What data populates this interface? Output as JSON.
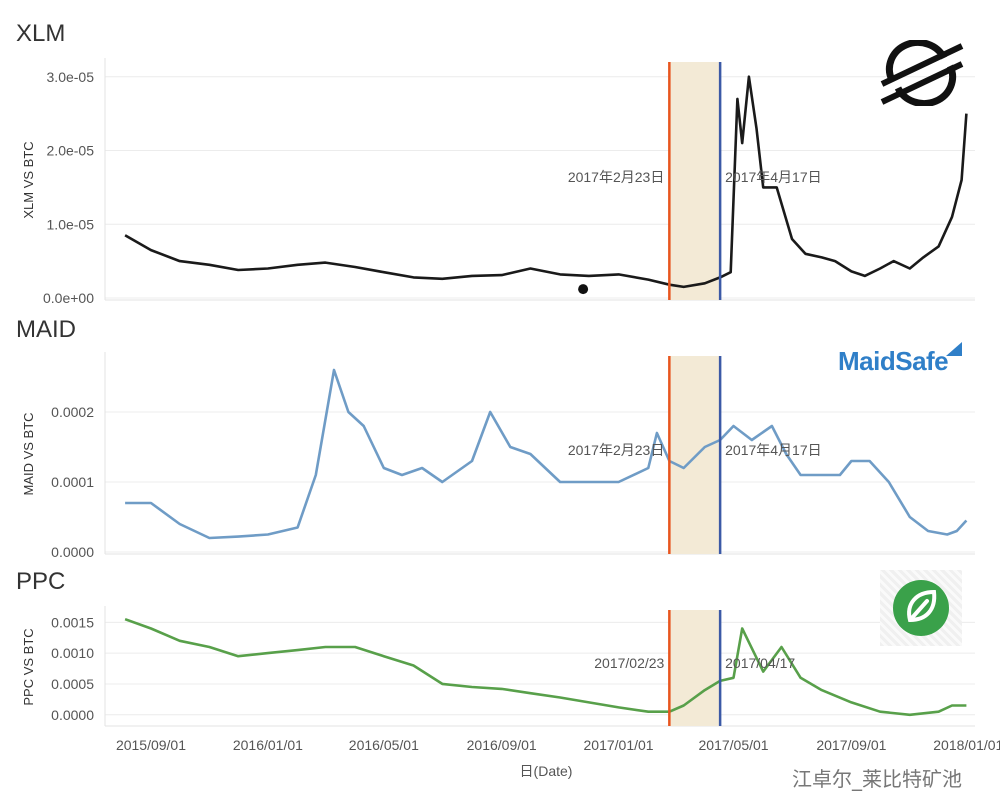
{
  "panels": [
    {
      "title": "XLM",
      "logo": "stellar-logo-icon"
    },
    {
      "title": "MAID",
      "logo": "maidsafe-logo-icon",
      "logo_text": "MaidSafe"
    },
    {
      "title": "PPC",
      "logo": "peercoin-leaf-icon"
    }
  ],
  "watermark": "江卓尔_莱比特矿池",
  "colors": {
    "xlm": "#1a1a1a",
    "maid": "#6f9cc6",
    "ppc": "#58a04a",
    "start_line": "#e8551e",
    "end_line": "#3b59a6",
    "shade": "#f3ead6",
    "grid": "#ececec"
  },
  "chart_data": [
    {
      "type": "line",
      "ylabel": "XLM VS BTC",
      "xlabel": "",
      "ylim": [
        0,
        3.2e-05
      ],
      "y_ticks": [
        "0.0e+00",
        "1.0e-05",
        "2.0e-05",
        "3.0e-05"
      ],
      "annotations": [
        "2017年2月23日",
        "2017年4月17日"
      ],
      "highlight_range": [
        "2017-02-23",
        "2017-04-17"
      ],
      "series": [
        {
          "x": [
            "2015-08-05",
            "2015-09-01",
            "2015-10-01",
            "2015-11-01",
            "2015-12-01",
            "2016-01-01",
            "2016-02-01",
            "2016-03-01",
            "2016-04-01",
            "2016-05-01",
            "2016-06-01",
            "2016-07-01",
            "2016-08-01",
            "2016-09-01",
            "2016-10-01",
            "2016-11-01",
            "2016-12-01",
            "2017-01-01",
            "2017-02-01",
            "2017-02-23",
            "2017-03-10",
            "2017-04-01",
            "2017-04-17",
            "2017-04-28",
            "2017-05-05",
            "2017-05-10",
            "2017-05-17",
            "2017-05-25",
            "2017-06-01",
            "2017-06-15",
            "2017-07-01",
            "2017-07-15",
            "2017-08-01",
            "2017-08-15",
            "2017-09-01",
            "2017-09-15",
            "2017-10-01",
            "2017-10-15",
            "2017-11-01",
            "2017-11-15",
            "2017-12-01",
            "2017-12-15",
            "2017-12-25",
            "2017-12-30"
          ],
          "y": [
            8.5e-06,
            6.5e-06,
            5e-06,
            4.5e-06,
            3.8e-06,
            4e-06,
            4.5e-06,
            4.8e-06,
            4.2e-06,
            3.5e-06,
            2.8e-06,
            2.6e-06,
            3e-06,
            3.1e-06,
            4e-06,
            3.2e-06,
            3e-06,
            3.2e-06,
            2.5e-06,
            1.8e-06,
            1.5e-06,
            2e-06,
            2.8e-06,
            3.5e-06,
            2.7e-05,
            2.1e-05,
            3e-05,
            2.3e-05,
            1.5e-05,
            1.5e-05,
            8e-06,
            6e-06,
            5.5e-06,
            5e-06,
            3.6e-06,
            3e-06,
            4e-06,
            5e-06,
            4e-06,
            5.5e-06,
            7e-06,
            1.1e-05,
            1.6e-05,
            2.5e-05
          ]
        }
      ],
      "points": [
        {
          "x": "2016-11-25",
          "y": 1.2e-06
        }
      ]
    },
    {
      "type": "line",
      "ylabel": "MAID VS BTC",
      "xlabel": "",
      "ylim": [
        0,
        0.00028
      ],
      "y_ticks": [
        "0.0000",
        "0.0001",
        "0.0002"
      ],
      "annotations": [
        "2017年2月23日",
        "2017年4月17日"
      ],
      "highlight_range": [
        "2017-02-23",
        "2017-04-17"
      ],
      "series": [
        {
          "x": [
            "2015-08-05",
            "2015-09-01",
            "2015-10-01",
            "2015-11-01",
            "2015-12-01",
            "2016-01-01",
            "2016-02-01",
            "2016-02-20",
            "2016-03-10",
            "2016-03-25",
            "2016-04-10",
            "2016-05-01",
            "2016-05-20",
            "2016-06-10",
            "2016-07-01",
            "2016-08-01",
            "2016-08-20",
            "2016-09-10",
            "2016-10-01",
            "2016-11-01",
            "2016-12-01",
            "2017-01-01",
            "2017-02-01",
            "2017-02-10",
            "2017-02-23",
            "2017-03-10",
            "2017-04-01",
            "2017-04-17",
            "2017-05-01",
            "2017-05-20",
            "2017-06-10",
            "2017-06-25",
            "2017-07-10",
            "2017-08-01",
            "2017-08-20",
            "2017-09-01",
            "2017-09-20",
            "2017-10-10",
            "2017-11-01",
            "2017-11-20",
            "2017-12-10",
            "2017-12-20",
            "2017-12-30"
          ],
          "y": [
            7e-05,
            7e-05,
            4e-05,
            2e-05,
            2.2e-05,
            2.5e-05,
            3.5e-05,
            0.00011,
            0.00026,
            0.0002,
            0.00018,
            0.00012,
            0.00011,
            0.00012,
            0.0001,
            0.00013,
            0.0002,
            0.00015,
            0.00014,
            0.0001,
            0.0001,
            0.0001,
            0.00012,
            0.00017,
            0.00013,
            0.00012,
            0.00015,
            0.00016,
            0.00018,
            0.00016,
            0.00018,
            0.00014,
            0.00011,
            0.00011,
            0.00011,
            0.00013,
            0.00013,
            0.0001,
            5e-05,
            3e-05,
            2.5e-05,
            3e-05,
            4.5e-05
          ]
        }
      ]
    },
    {
      "type": "line",
      "ylabel": "PPC VS BTC",
      "xlabel": "日(Date)",
      "ylim": [
        -0.00015,
        0.0017
      ],
      "y_ticks": [
        "0.0000",
        "0.0005",
        "0.0010",
        "0.0015"
      ],
      "x_ticks": [
        "2015/09/01",
        "2016/01/01",
        "2016/05/01",
        "2016/09/01",
        "2017/01/01",
        "2017/05/01",
        "2017/09/01",
        "2018/01/01"
      ],
      "annotations": [
        "2017/02/23",
        "2017/04/17"
      ],
      "highlight_range": [
        "2017-02-23",
        "2017-04-17"
      ],
      "series": [
        {
          "x": [
            "2015-08-05",
            "2015-09-01",
            "2015-10-01",
            "2015-11-01",
            "2015-12-01",
            "2016-01-01",
            "2016-02-01",
            "2016-03-01",
            "2016-04-01",
            "2016-05-01",
            "2016-06-01",
            "2016-07-01",
            "2016-08-01",
            "2016-09-01",
            "2016-10-01",
            "2016-11-01",
            "2016-12-01",
            "2017-01-01",
            "2017-02-01",
            "2017-02-23",
            "2017-03-10",
            "2017-04-01",
            "2017-04-17",
            "2017-05-01",
            "2017-05-10",
            "2017-06-01",
            "2017-06-20",
            "2017-07-10",
            "2017-08-01",
            "2017-09-01",
            "2017-10-01",
            "2017-11-01",
            "2017-12-01",
            "2017-12-15",
            "2017-12-30"
          ],
          "y": [
            0.00155,
            0.0014,
            0.0012,
            0.0011,
            0.00095,
            0.001,
            0.00105,
            0.0011,
            0.0011,
            0.00095,
            0.0008,
            0.0005,
            0.00045,
            0.00042,
            0.00035,
            0.00028,
            0.0002,
            0.00012,
            5e-05,
            5e-05,
            0.00015,
            0.0004,
            0.00055,
            0.0006,
            0.0014,
            0.0007,
            0.0011,
            0.0006,
            0.0004,
            0.0002,
            5e-05,
            0.0,
            5e-05,
            0.00015,
            0.00015
          ]
        }
      ]
    }
  ]
}
